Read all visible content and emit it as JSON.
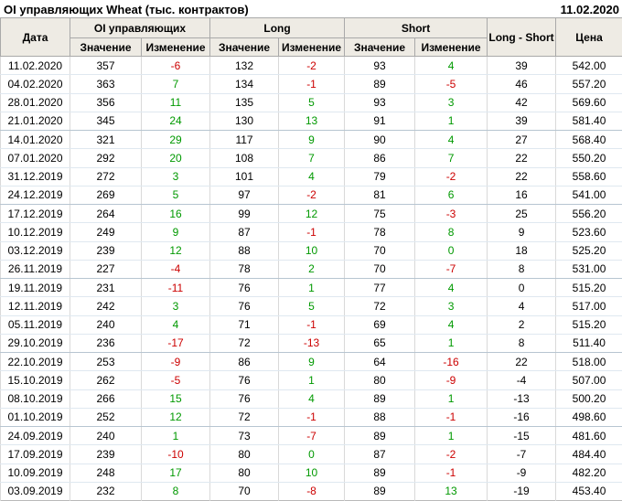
{
  "header": {
    "title": "OI управляющих Wheat (тыс. контрактов)",
    "report_date": "11.02.2020"
  },
  "table": {
    "headers": {
      "date": "Дата",
      "oi_group": "OI управляющих",
      "long_group": "Long",
      "short_group": "Short",
      "long_short": "Long - Short",
      "price": "Цена",
      "value": "Значение",
      "change": "Изменение"
    },
    "rows": [
      {
        "date": "11.02.2020",
        "oi": "357",
        "oi_chg": "-6",
        "long": "132",
        "long_chg": "-2",
        "short": "93",
        "short_chg": "4",
        "ls": "39",
        "price": "542.00"
      },
      {
        "date": "04.02.2020",
        "oi": "363",
        "oi_chg": "7",
        "long": "134",
        "long_chg": "-1",
        "short": "89",
        "short_chg": "-5",
        "ls": "46",
        "price": "557.20"
      },
      {
        "date": "28.01.2020",
        "oi": "356",
        "oi_chg": "11",
        "long": "135",
        "long_chg": "5",
        "short": "93",
        "short_chg": "3",
        "ls": "42",
        "price": "569.60"
      },
      {
        "date": "21.01.2020",
        "oi": "345",
        "oi_chg": "24",
        "long": "130",
        "long_chg": "13",
        "short": "91",
        "short_chg": "1",
        "ls": "39",
        "price": "581.40"
      },
      {
        "date": "14.01.2020",
        "oi": "321",
        "oi_chg": "29",
        "long": "117",
        "long_chg": "9",
        "short": "90",
        "short_chg": "4",
        "ls": "27",
        "price": "568.40"
      },
      {
        "date": "07.01.2020",
        "oi": "292",
        "oi_chg": "20",
        "long": "108",
        "long_chg": "7",
        "short": "86",
        "short_chg": "7",
        "ls": "22",
        "price": "550.20"
      },
      {
        "date": "31.12.2019",
        "oi": "272",
        "oi_chg": "3",
        "long": "101",
        "long_chg": "4",
        "short": "79",
        "short_chg": "-2",
        "ls": "22",
        "price": "558.60"
      },
      {
        "date": "24.12.2019",
        "oi": "269",
        "oi_chg": "5",
        "long": "97",
        "long_chg": "-2",
        "short": "81",
        "short_chg": "6",
        "ls": "16",
        "price": "541.00"
      },
      {
        "date": "17.12.2019",
        "oi": "264",
        "oi_chg": "16",
        "long": "99",
        "long_chg": "12",
        "short": "75",
        "short_chg": "-3",
        "ls": "25",
        "price": "556.20"
      },
      {
        "date": "10.12.2019",
        "oi": "249",
        "oi_chg": "9",
        "long": "87",
        "long_chg": "-1",
        "short": "78",
        "short_chg": "8",
        "ls": "9",
        "price": "523.60"
      },
      {
        "date": "03.12.2019",
        "oi": "239",
        "oi_chg": "12",
        "long": "88",
        "long_chg": "10",
        "short": "70",
        "short_chg": "0",
        "ls": "18",
        "price": "525.20"
      },
      {
        "date": "26.11.2019",
        "oi": "227",
        "oi_chg": "-4",
        "long": "78",
        "long_chg": "2",
        "short": "70",
        "short_chg": "-7",
        "ls": "8",
        "price": "531.00"
      },
      {
        "date": "19.11.2019",
        "oi": "231",
        "oi_chg": "-11",
        "long": "76",
        "long_chg": "1",
        "short": "77",
        "short_chg": "4",
        "ls": "0",
        "price": "515.20"
      },
      {
        "date": "12.11.2019",
        "oi": "242",
        "oi_chg": "3",
        "long": "76",
        "long_chg": "5",
        "short": "72",
        "short_chg": "3",
        "ls": "4",
        "price": "517.00"
      },
      {
        "date": "05.11.2019",
        "oi": "240",
        "oi_chg": "4",
        "long": "71",
        "long_chg": "-1",
        "short": "69",
        "short_chg": "4",
        "ls": "2",
        "price": "515.20"
      },
      {
        "date": "29.10.2019",
        "oi": "236",
        "oi_chg": "-17",
        "long": "72",
        "long_chg": "-13",
        "short": "65",
        "short_chg": "1",
        "ls": "8",
        "price": "511.40"
      },
      {
        "date": "22.10.2019",
        "oi": "253",
        "oi_chg": "-9",
        "long": "86",
        "long_chg": "9",
        "short": "64",
        "short_chg": "-16",
        "ls": "22",
        "price": "518.00"
      },
      {
        "date": "15.10.2019",
        "oi": "262",
        "oi_chg": "-5",
        "long": "76",
        "long_chg": "1",
        "short": "80",
        "short_chg": "-9",
        "ls": "-4",
        "price": "507.00"
      },
      {
        "date": "08.10.2019",
        "oi": "266",
        "oi_chg": "15",
        "long": "76",
        "long_chg": "4",
        "short": "89",
        "short_chg": "1",
        "ls": "-13",
        "price": "500.20"
      },
      {
        "date": "01.10.2019",
        "oi": "252",
        "oi_chg": "12",
        "long": "72",
        "long_chg": "-1",
        "short": "88",
        "short_chg": "-1",
        "ls": "-16",
        "price": "498.60"
      },
      {
        "date": "24.09.2019",
        "oi": "240",
        "oi_chg": "1",
        "long": "73",
        "long_chg": "-7",
        "short": "89",
        "short_chg": "1",
        "ls": "-15",
        "price": "481.60"
      },
      {
        "date": "17.09.2019",
        "oi": "239",
        "oi_chg": "-10",
        "long": "80",
        "long_chg": "0",
        "short": "87",
        "short_chg": "-2",
        "ls": "-7",
        "price": "484.40"
      },
      {
        "date": "10.09.2019",
        "oi": "248",
        "oi_chg": "17",
        "long": "80",
        "long_chg": "10",
        "short": "89",
        "short_chg": "-1",
        "ls": "-9",
        "price": "482.20"
      },
      {
        "date": "03.09.2019",
        "oi": "232",
        "oi_chg": "8",
        "long": "70",
        "long_chg": "-8",
        "short": "89",
        "short_chg": "13",
        "ls": "-19",
        "price": "453.40"
      }
    ]
  },
  "colors": {
    "positive": "#009900",
    "negative": "#cc0000",
    "header_bg": "#eeebe4"
  }
}
